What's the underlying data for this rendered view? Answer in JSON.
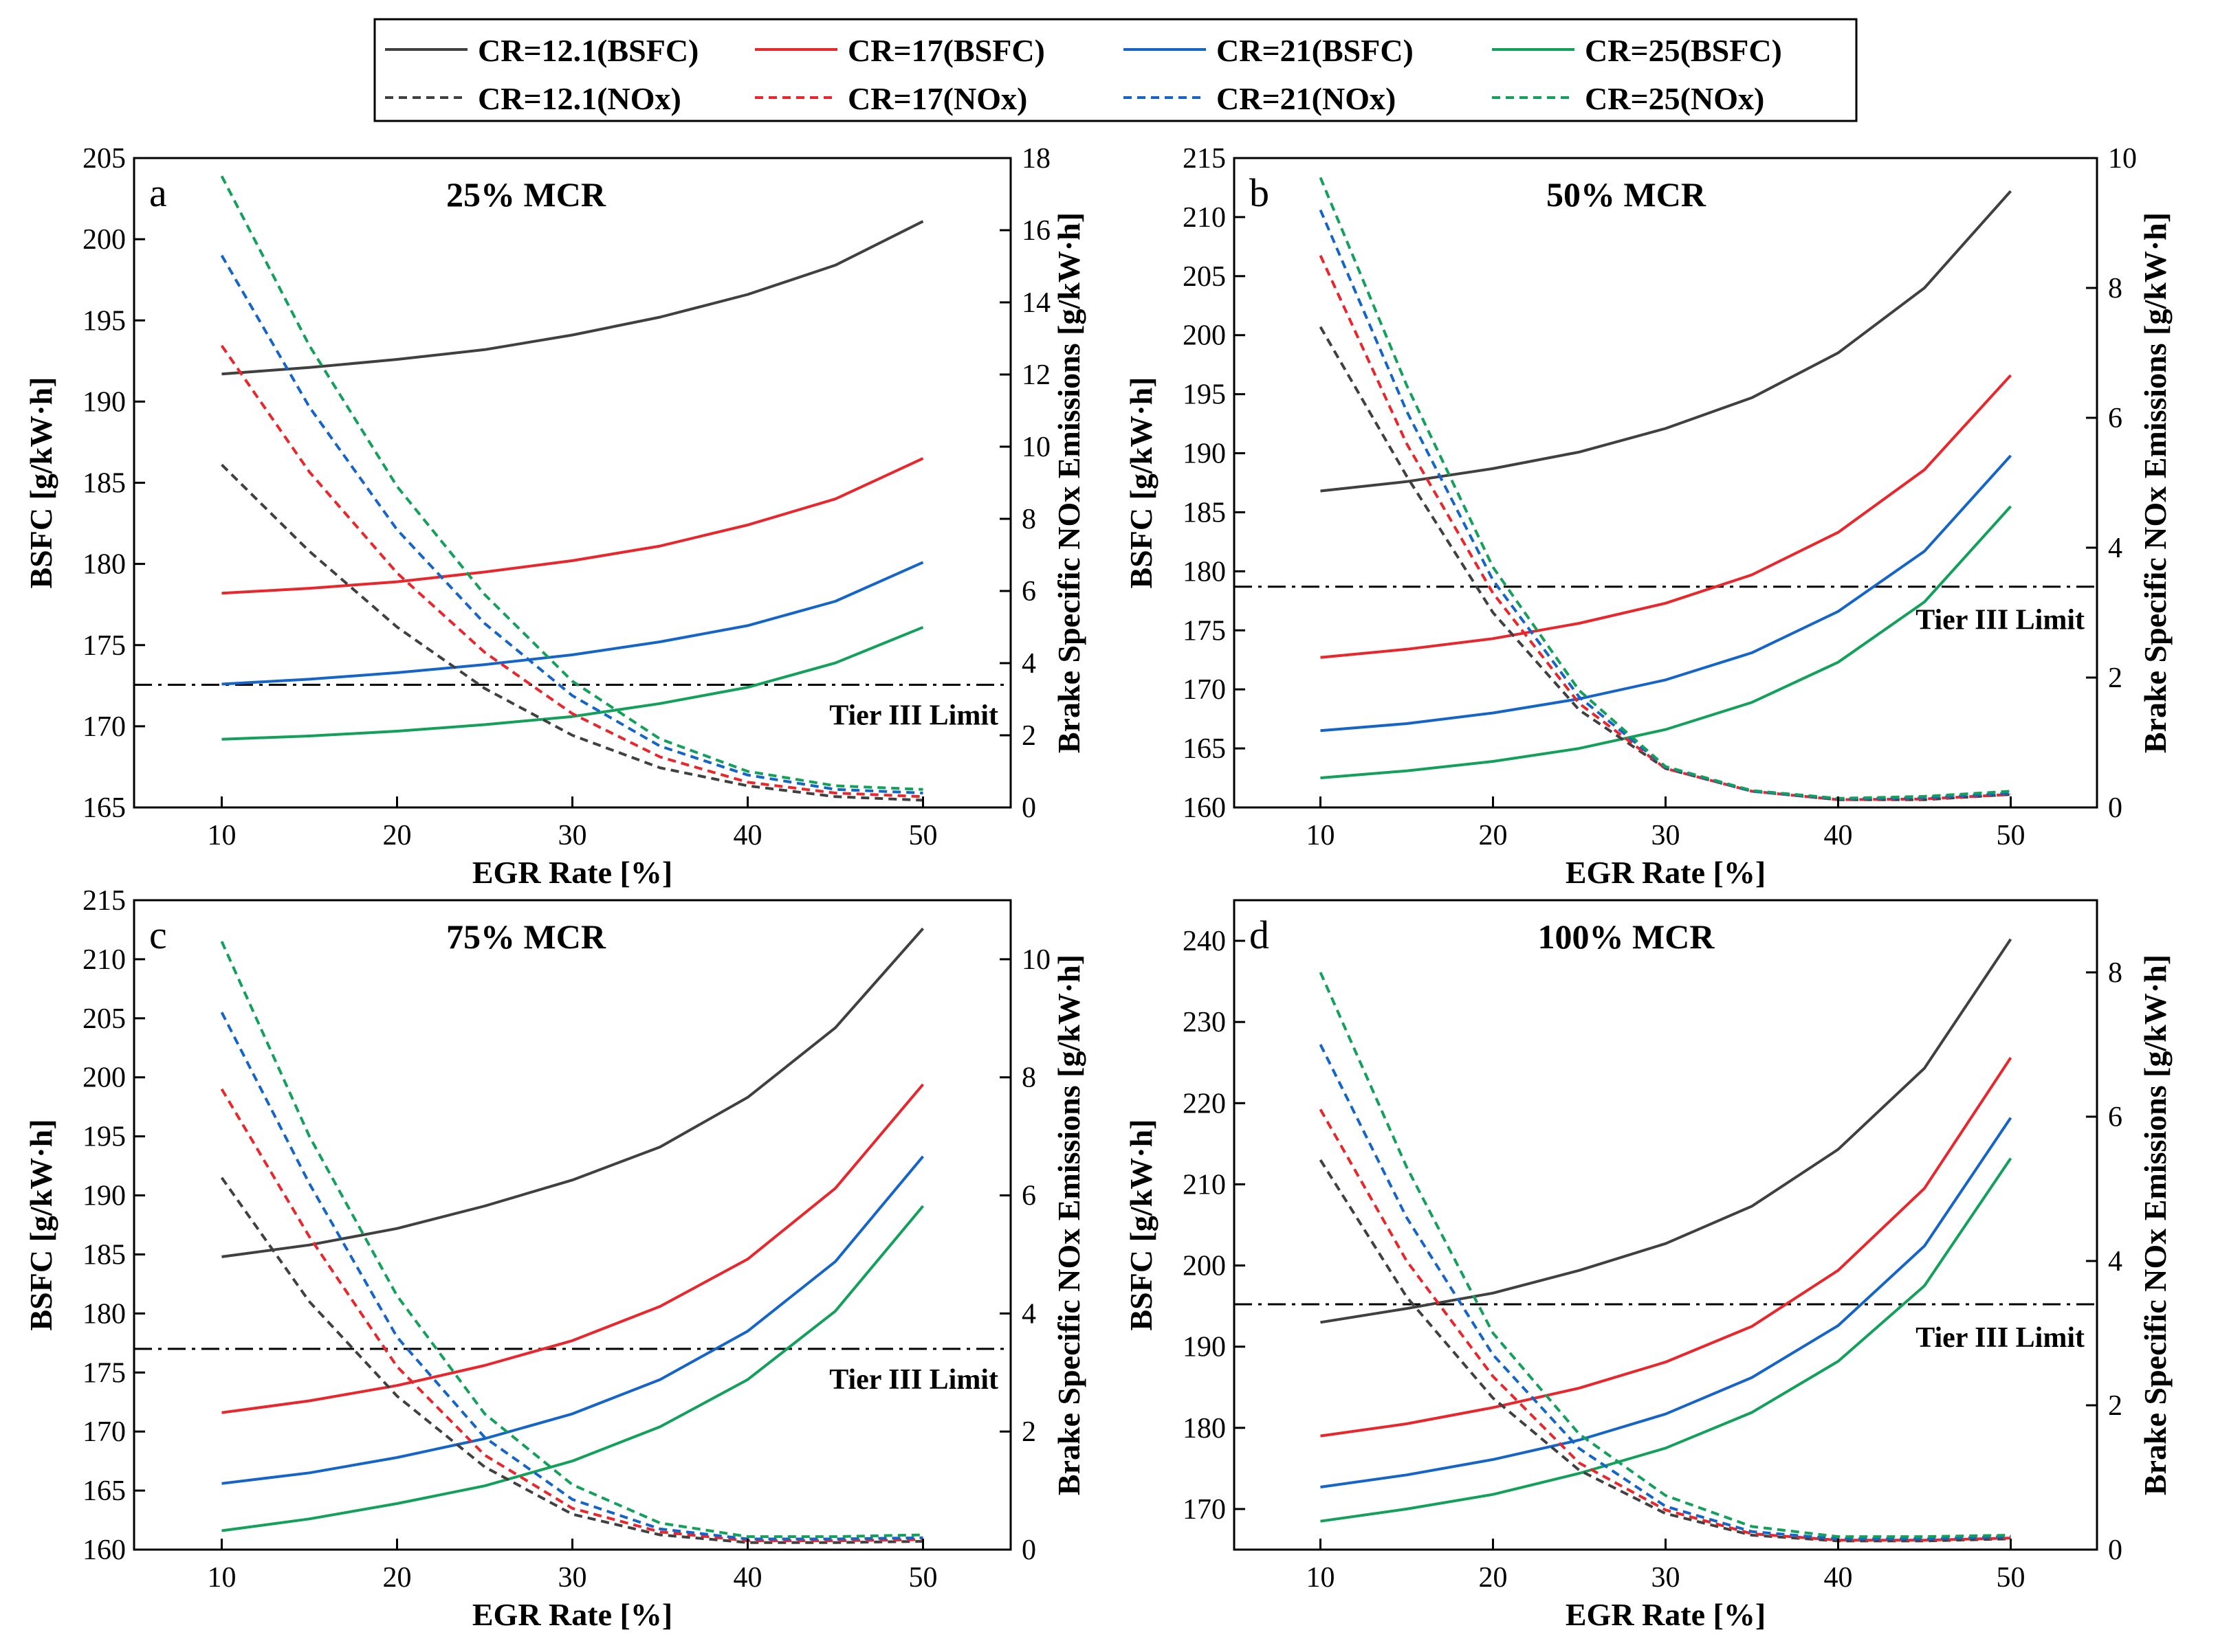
{
  "legend": {
    "entries": [
      {
        "label": "CR=12.1(BSFC)",
        "color": "#404040",
        "dash": false
      },
      {
        "label": "CR=17(BSFC)",
        "color": "#e8262b",
        "dash": false
      },
      {
        "label": "CR=21(BSFC)",
        "color": "#1565c8",
        "dash": false
      },
      {
        "label": "CR=25(BSFC)",
        "color": "#12a05a",
        "dash": false
      },
      {
        "label": "CR=12.1(NOx)",
        "color": "#404040",
        "dash": true
      },
      {
        "label": "CR=17(NOx)",
        "color": "#e8262b",
        "dash": true
      },
      {
        "label": "CR=21(NOx)",
        "color": "#1565c8",
        "dash": true
      },
      {
        "label": "CR=25(NOx)",
        "color": "#12a05a",
        "dash": true
      }
    ]
  },
  "chart_data": [
    {
      "type": "line",
      "panel": "a",
      "title": "25% MCR",
      "xlabel": "EGR Rate [%]",
      "ylabel": "BSFC [g/kW·h]",
      "y2label": "Brake Specific NOx Emissions [g/kW·h]",
      "limit_label": "Tier III Limit",
      "x": [
        10,
        15,
        20,
        25,
        30,
        35,
        40,
        45,
        50
      ],
      "xlim": [
        5,
        55
      ],
      "xticks": [
        10,
        20,
        30,
        40,
        50
      ],
      "ylim": [
        165,
        205
      ],
      "yticks": [
        165,
        170,
        175,
        180,
        185,
        190,
        195,
        200,
        205
      ],
      "y2lim": [
        0,
        18
      ],
      "y2ticks": [
        0,
        2,
        4,
        6,
        8,
        10,
        12,
        14,
        16,
        18
      ],
      "limit_value": 3.4,
      "bsfc_series": [
        {
          "name": "CR=12.1(BSFC)",
          "values": [
            191.7,
            192.1,
            192.6,
            193.2,
            194.1,
            195.2,
            196.6,
            198.4,
            201.1
          ]
        },
        {
          "name": "CR=17(BSFC)",
          "values": [
            178.2,
            178.5,
            178.9,
            179.5,
            180.2,
            181.1,
            182.4,
            184.0,
            186.5
          ]
        },
        {
          "name": "CR=21(BSFC)",
          "values": [
            172.6,
            172.9,
            173.3,
            173.8,
            174.4,
            175.2,
            176.2,
            177.7,
            180.1
          ]
        },
        {
          "name": "CR=25(BSFC)",
          "values": [
            169.2,
            169.4,
            169.7,
            170.1,
            170.6,
            171.4,
            172.4,
            173.9,
            176.1
          ]
        }
      ],
      "nox_series": [
        {
          "name": "CR=12.1(NOx)",
          "values": [
            9.5,
            7.1,
            5.0,
            3.3,
            2.0,
            1.1,
            0.6,
            0.3,
            0.2
          ]
        },
        {
          "name": "CR=17(NOx)",
          "values": [
            12.8,
            9.3,
            6.5,
            4.3,
            2.6,
            1.4,
            0.7,
            0.4,
            0.3
          ]
        },
        {
          "name": "CR=21(NOx)",
          "values": [
            15.3,
            11.1,
            7.7,
            5.1,
            3.1,
            1.7,
            0.9,
            0.5,
            0.4
          ]
        },
        {
          "name": "CR=25(NOx)",
          "values": [
            17.5,
            12.8,
            8.9,
            5.9,
            3.5,
            1.9,
            1.0,
            0.6,
            0.5
          ]
        }
      ]
    },
    {
      "type": "line",
      "panel": "b",
      "title": "50% MCR",
      "xlabel": "EGR Rate [%]",
      "ylabel": "BSFC [g/kW·h]",
      "y2label": "Brake Specific NOx Emissions [g/kW·h]",
      "limit_label": "Tier III Limit",
      "x": [
        10,
        15,
        20,
        25,
        30,
        35,
        40,
        45,
        50
      ],
      "xlim": [
        5,
        55
      ],
      "xticks": [
        10,
        20,
        30,
        40,
        50
      ],
      "ylim": [
        160,
        215
      ],
      "yticks": [
        160,
        165,
        170,
        175,
        180,
        185,
        190,
        195,
        200,
        205,
        210,
        215
      ],
      "y2lim": [
        0,
        10
      ],
      "y2ticks": [
        0,
        2,
        4,
        6,
        8,
        10
      ],
      "limit_value": 3.4,
      "bsfc_series": [
        {
          "name": "CR=12.1(BSFC)",
          "values": [
            186.8,
            187.6,
            188.7,
            190.1,
            192.1,
            194.7,
            198.5,
            204.0,
            212.2
          ]
        },
        {
          "name": "CR=17(BSFC)",
          "values": [
            172.7,
            173.4,
            174.3,
            175.6,
            177.3,
            179.7,
            183.3,
            188.6,
            196.6
          ]
        },
        {
          "name": "CR=21(BSFC)",
          "values": [
            166.5,
            167.1,
            168.0,
            169.2,
            170.8,
            173.1,
            176.6,
            181.7,
            189.8
          ]
        },
        {
          "name": "CR=25(BSFC)",
          "values": [
            162.5,
            163.1,
            163.9,
            165.0,
            166.6,
            168.9,
            172.3,
            177.4,
            185.5
          ]
        }
      ],
      "nox_series": [
        {
          "name": "CR=12.1(NOx)",
          "values": [
            7.4,
            5.1,
            3.0,
            1.5,
            0.6,
            0.25,
            0.12,
            0.12,
            0.2
          ]
        },
        {
          "name": "CR=17(NOx)",
          "values": [
            8.5,
            5.6,
            3.3,
            1.6,
            0.6,
            0.25,
            0.12,
            0.13,
            0.2
          ]
        },
        {
          "name": "CR=21(NOx)",
          "values": [
            9.2,
            6.1,
            3.5,
            1.7,
            0.62,
            0.25,
            0.13,
            0.15,
            0.22
          ]
        },
        {
          "name": "CR=25(NOx)",
          "values": [
            9.7,
            6.5,
            3.7,
            1.8,
            0.63,
            0.26,
            0.14,
            0.17,
            0.25
          ]
        }
      ]
    },
    {
      "type": "line",
      "panel": "c",
      "title": "75% MCR",
      "xlabel": "EGR Rate [%]",
      "ylabel": "BSFC [g/kW·h]",
      "y2label": "Brake Specific NOx Emissions [g/kW·h]",
      "limit_label": "Tier III Limit",
      "x": [
        10,
        15,
        20,
        25,
        30,
        35,
        40,
        45,
        50
      ],
      "xlim": [
        5,
        55
      ],
      "xticks": [
        10,
        20,
        30,
        40,
        50
      ],
      "ylim": [
        160,
        215
      ],
      "yticks": [
        160,
        165,
        170,
        175,
        180,
        185,
        190,
        195,
        200,
        205,
        210,
        215
      ],
      "y2lim": [
        0,
        11
      ],
      "y2ticks": [
        0,
        2,
        4,
        6,
        8,
        10
      ],
      "limit_value": 3.4,
      "bsfc_series": [
        {
          "name": "CR=12.1(BSFC)",
          "values": [
            184.8,
            185.8,
            187.2,
            189.1,
            191.3,
            194.1,
            198.3,
            204.2,
            212.6
          ]
        },
        {
          "name": "CR=17(BSFC)",
          "values": [
            171.6,
            172.6,
            173.9,
            175.6,
            177.7,
            180.6,
            184.6,
            190.6,
            199.4
          ]
        },
        {
          "name": "CR=21(BSFC)",
          "values": [
            165.6,
            166.5,
            167.8,
            169.4,
            171.5,
            174.4,
            178.5,
            184.4,
            193.3
          ]
        },
        {
          "name": "CR=25(BSFC)",
          "values": [
            161.6,
            162.6,
            163.9,
            165.4,
            167.5,
            170.4,
            174.4,
            180.2,
            189.1
          ]
        }
      ],
      "nox_series": [
        {
          "name": "CR=12.1(NOx)",
          "values": [
            6.3,
            4.2,
            2.6,
            1.4,
            0.6,
            0.25,
            0.12,
            0.12,
            0.14
          ]
        },
        {
          "name": "CR=17(NOx)",
          "values": [
            7.8,
            5.3,
            3.1,
            1.6,
            0.7,
            0.3,
            0.15,
            0.15,
            0.17
          ]
        },
        {
          "name": "CR=21(NOx)",
          "values": [
            9.1,
            6.2,
            3.6,
            1.9,
            0.85,
            0.35,
            0.18,
            0.18,
            0.2
          ]
        },
        {
          "name": "CR=25(NOx)",
          "values": [
            10.3,
            7.0,
            4.3,
            2.3,
            1.1,
            0.45,
            0.22,
            0.22,
            0.25
          ]
        }
      ]
    },
    {
      "type": "line",
      "panel": "d",
      "title": "100% MCR",
      "xlabel": "EGR Rate [%]",
      "ylabel": "BSFC [g/kW·h]",
      "y2label": "Brake Specific NOx Emissions [g/kW·h]",
      "limit_label": "Tier III Limit",
      "x": [
        10,
        15,
        20,
        25,
        30,
        35,
        40,
        45,
        50
      ],
      "xlim": [
        5,
        55
      ],
      "xticks": [
        10,
        20,
        30,
        40,
        50
      ],
      "ylim": [
        165,
        245
      ],
      "yticks": [
        170,
        180,
        190,
        200,
        210,
        220,
        230,
        240
      ],
      "y2lim": [
        0,
        9
      ],
      "y2ticks": [
        0,
        2,
        4,
        6,
        8
      ],
      "limit_value": 3.4,
      "bsfc_series": [
        {
          "name": "CR=12.1(BSFC)",
          "values": [
            193.0,
            194.7,
            196.6,
            199.4,
            202.7,
            207.3,
            214.3,
            224.3,
            240.2
          ]
        },
        {
          "name": "CR=17(BSFC)",
          "values": [
            179.0,
            180.5,
            182.5,
            184.9,
            188.1,
            192.5,
            199.4,
            209.5,
            225.6
          ]
        },
        {
          "name": "CR=21(BSFC)",
          "values": [
            172.7,
            174.2,
            176.1,
            178.5,
            181.7,
            186.2,
            192.6,
            202.4,
            218.2
          ]
        },
        {
          "name": "CR=25(BSFC)",
          "values": [
            168.5,
            170.0,
            171.8,
            174.4,
            177.5,
            181.9,
            188.2,
            197.5,
            213.2
          ]
        }
      ],
      "nox_series": [
        {
          "name": "CR=12.1(NOx)",
          "values": [
            5.4,
            3.5,
            2.1,
            1.1,
            0.5,
            0.2,
            0.12,
            0.12,
            0.15
          ]
        },
        {
          "name": "CR=17(NOx)",
          "values": [
            6.1,
            4.0,
            2.4,
            1.2,
            0.55,
            0.22,
            0.13,
            0.13,
            0.16
          ]
        },
        {
          "name": "CR=21(NOx)",
          "values": [
            7.0,
            4.6,
            2.7,
            1.4,
            0.6,
            0.25,
            0.15,
            0.15,
            0.18
          ]
        },
        {
          "name": "CR=25(NOx)",
          "values": [
            8.0,
            5.3,
            3.0,
            1.6,
            0.75,
            0.32,
            0.18,
            0.18,
            0.2
          ]
        }
      ]
    }
  ]
}
